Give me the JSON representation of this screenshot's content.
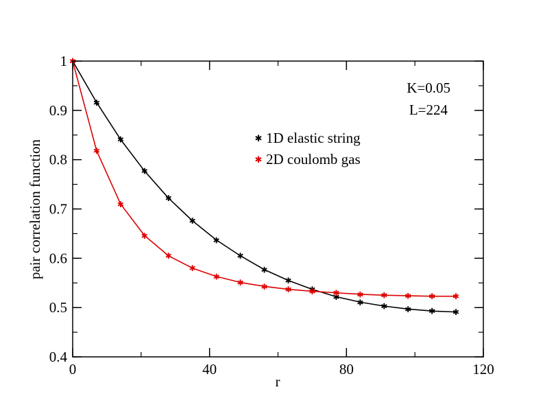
{
  "chart_data": {
    "type": "line",
    "title": "",
    "xlabel": "r",
    "ylabel": "pair correlation function",
    "xlim": [
      0,
      120
    ],
    "ylim": [
      0.4,
      1.0
    ],
    "x_ticks": [
      0,
      40,
      80,
      120
    ],
    "x_tick_labels": [
      "0",
      "40",
      "80",
      "120"
    ],
    "y_ticks": [
      0.4,
      0.5,
      0.6,
      0.7,
      0.8,
      0.9,
      1.0
    ],
    "y_tick_labels": [
      "0.4",
      "0.5",
      "0.6",
      "0.7",
      "0.8",
      "0.9",
      "1"
    ],
    "x_minor_step": 20,
    "y_minor_step": 0.05,
    "grid": false,
    "legend_position": "upper-right",
    "annotations": [
      "K=0.05",
      "L=224"
    ],
    "series": [
      {
        "name": "1D elastic string",
        "color": "#000000",
        "marker": "star",
        "x": [
          0,
          7,
          14,
          21,
          28,
          35,
          42,
          49,
          56,
          63,
          70,
          77,
          84,
          91,
          98,
          105,
          112
        ],
        "y": [
          1.0,
          0.916,
          0.841,
          0.777,
          0.722,
          0.676,
          0.637,
          0.605,
          0.577,
          0.555,
          0.537,
          0.522,
          0.511,
          0.503,
          0.497,
          0.493,
          0.491
        ]
      },
      {
        "name": "2D coulomb gas",
        "color": "#dd0000",
        "marker": "star",
        "x": [
          0,
          7,
          14,
          21,
          28,
          35,
          42,
          49,
          56,
          63,
          70,
          77,
          84,
          91,
          98,
          105,
          112
        ],
        "y": [
          1.0,
          0.818,
          0.71,
          0.646,
          0.605,
          0.58,
          0.563,
          0.551,
          0.543,
          0.537,
          0.533,
          0.53,
          0.527,
          0.525,
          0.524,
          0.523,
          0.523
        ]
      }
    ]
  }
}
